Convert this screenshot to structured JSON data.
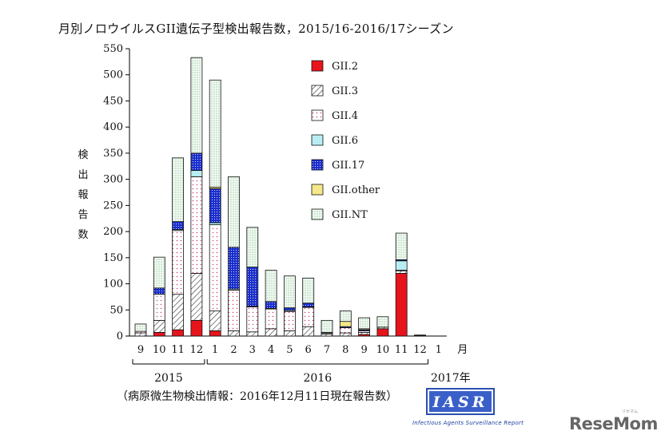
{
  "title": "月別ノロウイルスGII遺伝子型検出報告数，2015/16-2016/17シーズン",
  "ylabel_chars": [
    "検",
    "出",
    "報",
    "告",
    "数"
  ],
  "source_note": "（病原微生物検出情報：2016年12月11日現在報告数）",
  "logo": {
    "text": "IASR",
    "subtitle": "Infectious Agents Surveillance Report"
  },
  "watermark": {
    "text": "ReseMom",
    "small": "リセマム"
  },
  "chart_data": {
    "type": "bar",
    "stacked": true,
    "categories": [
      "9",
      "10",
      "11",
      "12",
      "1",
      "2",
      "3",
      "4",
      "5",
      "6",
      "7",
      "8",
      "9",
      "10",
      "11",
      "12",
      "1"
    ],
    "x_unit": "月",
    "year_groups": [
      {
        "label": "2015",
        "from": 0,
        "to": 3
      },
      {
        "label": "2016",
        "from": 4,
        "to": 15
      },
      {
        "label": "2017年",
        "from": 16,
        "to": 16
      }
    ],
    "ylim": [
      0,
      550
    ],
    "yticks": [
      0,
      50,
      100,
      150,
      200,
      250,
      300,
      350,
      400,
      450,
      500,
      550
    ],
    "legend_position": "top-right",
    "series": [
      {
        "name": "GII.2",
        "color": "#e8141c",
        "pattern": "solid",
        "values": [
          0,
          7,
          12,
          30,
          10,
          0,
          0,
          0,
          0,
          0,
          0,
          0,
          3,
          14,
          120,
          1,
          0
        ]
      },
      {
        "name": "GII.3",
        "color": "#222222",
        "pattern": "diagonal",
        "values": [
          6,
          23,
          68,
          90,
          38,
          10,
          8,
          14,
          10,
          18,
          4,
          6,
          4,
          3,
          5,
          0,
          0
        ]
      },
      {
        "name": "GII.4",
        "color": "#cc3377",
        "pattern": "dots-sparse",
        "values": [
          3,
          50,
          122,
          185,
          165,
          78,
          48,
          38,
          37,
          37,
          2,
          10,
          3,
          0,
          1,
          0,
          0
        ]
      },
      {
        "name": "GII.6",
        "color": "#33c6d6",
        "pattern": "solid-light",
        "values": [
          0,
          0,
          2,
          12,
          4,
          2,
          1,
          1,
          2,
          1,
          0,
          0,
          0,
          0,
          18,
          0,
          0
        ]
      },
      {
        "name": "GII.17",
        "color": "#1a2ecc",
        "pattern": "dots-dense",
        "values": [
          0,
          12,
          15,
          33,
          65,
          80,
          75,
          13,
          5,
          7,
          0,
          2,
          2,
          0,
          2,
          0,
          0
        ]
      },
      {
        "name": "GII.other",
        "color": "#f5e88a",
        "pattern": "solid-light",
        "values": [
          0,
          0,
          0,
          0,
          3,
          0,
          0,
          0,
          0,
          0,
          1,
          10,
          2,
          0,
          0,
          0,
          0
        ]
      },
      {
        "name": "GII.NT",
        "color": "#1d8a3a",
        "pattern": "dots-fine",
        "values": [
          14,
          59,
          122,
          183,
          205,
          135,
          76,
          60,
          61,
          48,
          23,
          20,
          21,
          20,
          51,
          1,
          0
        ]
      }
    ]
  }
}
